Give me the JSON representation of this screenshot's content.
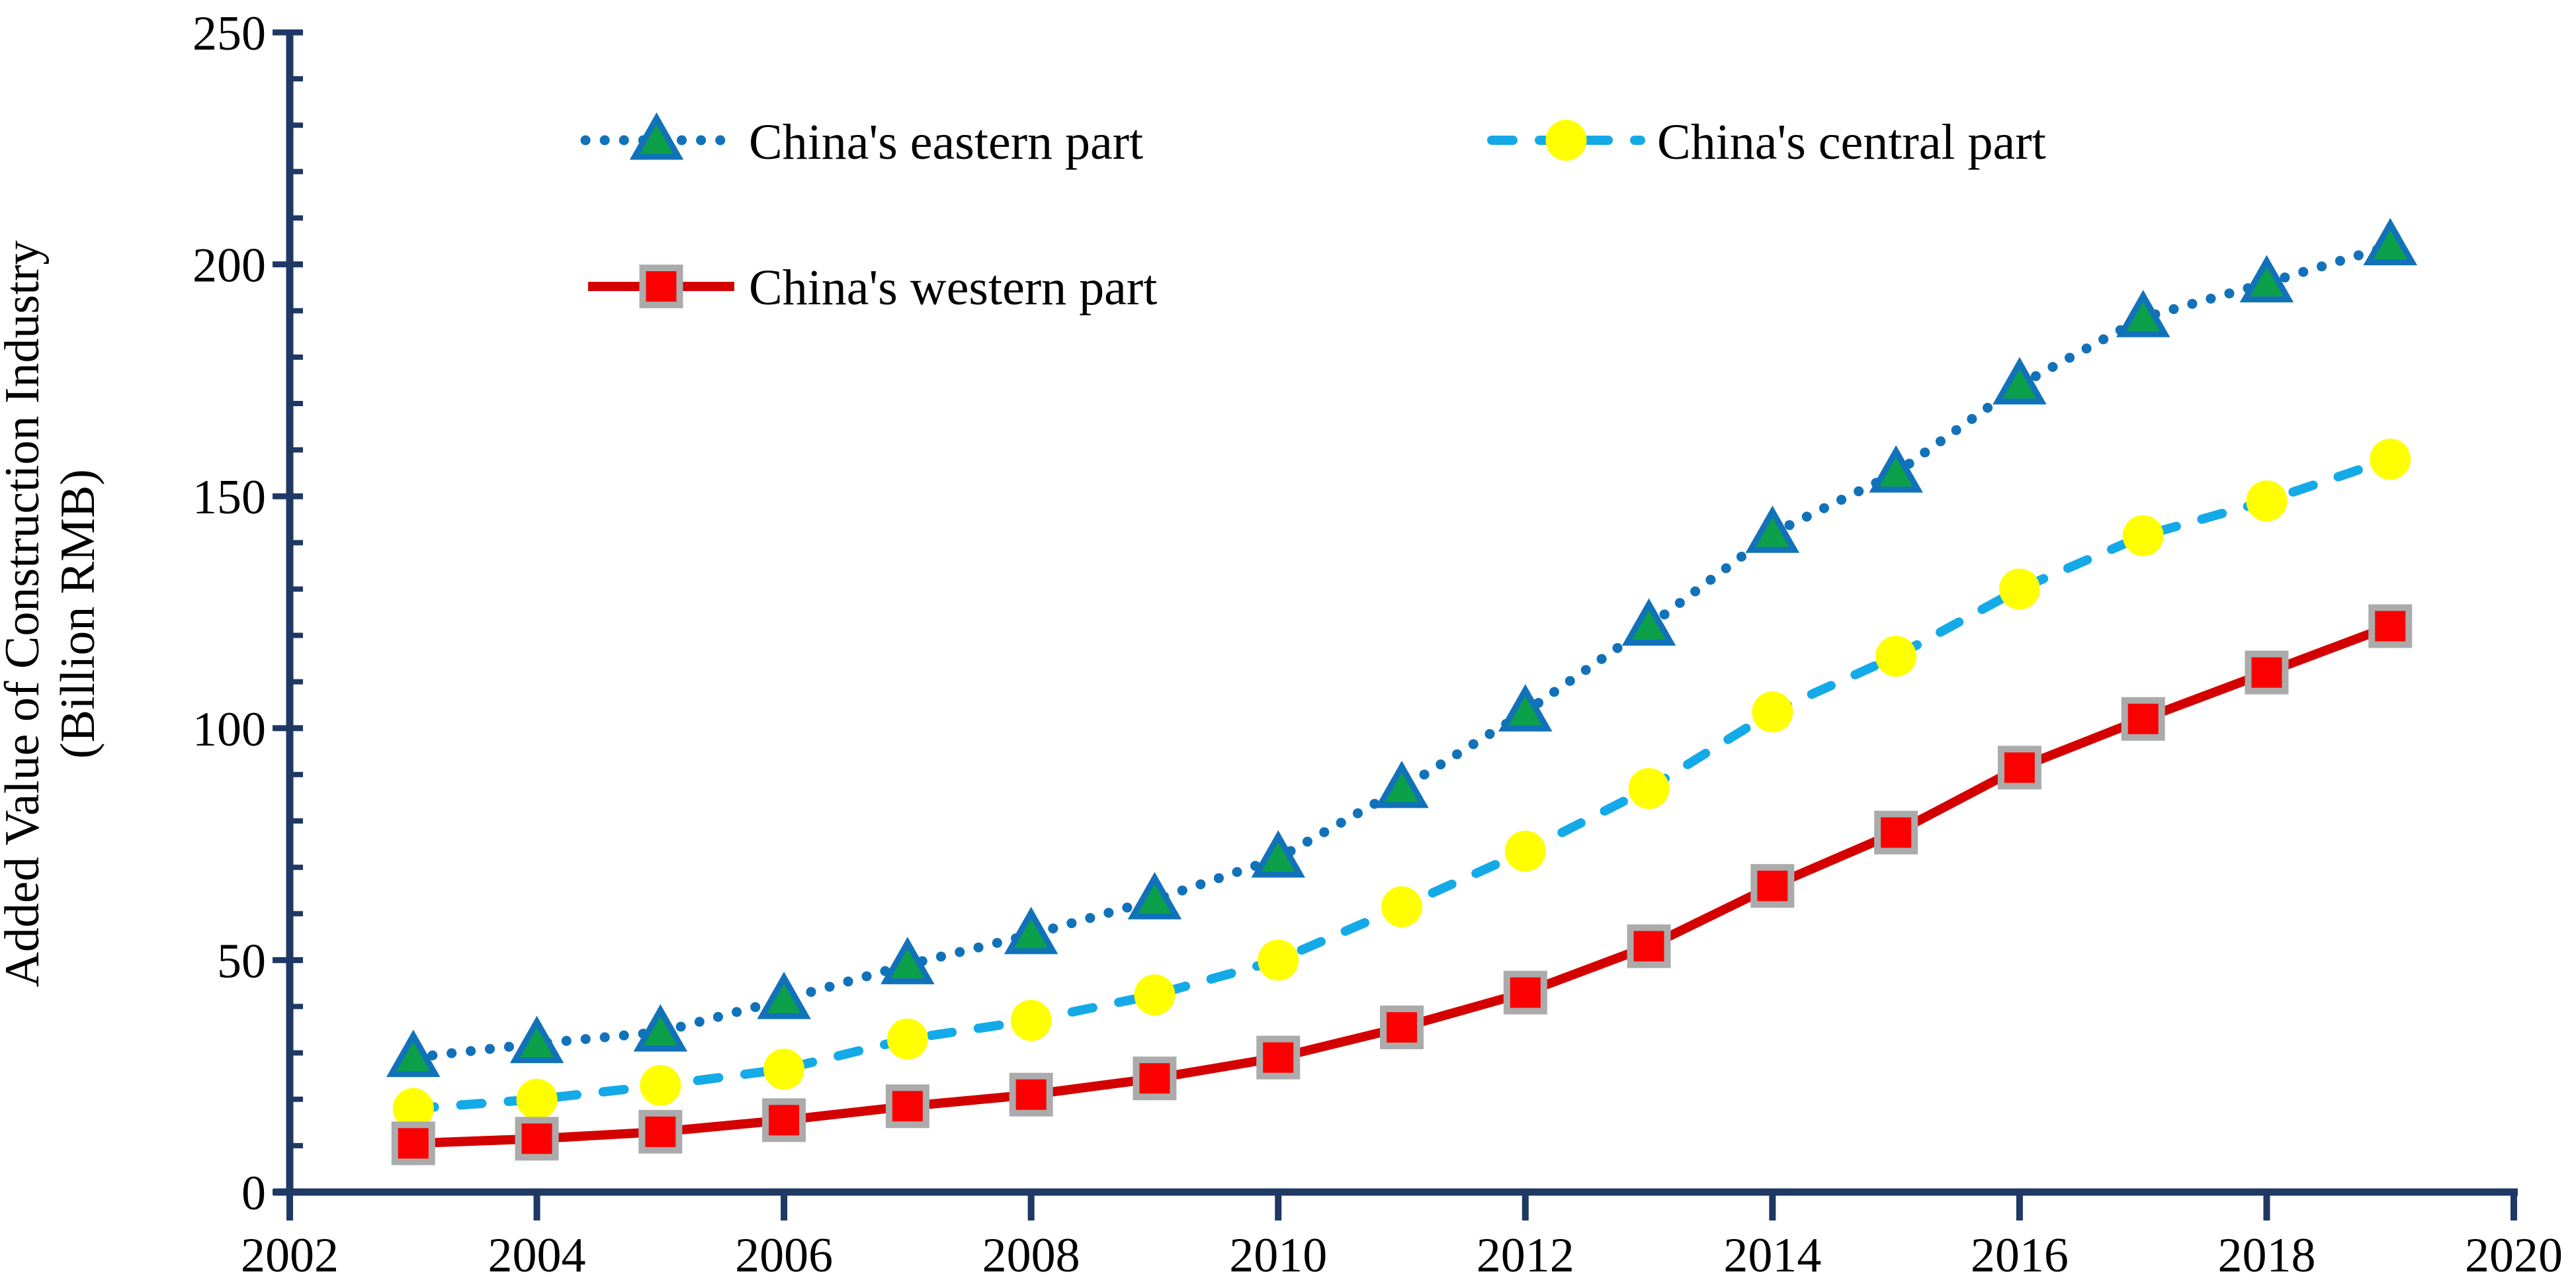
{
  "figure": {
    "background": "#FFFFFF",
    "axis_color": "#1F3864",
    "text_color": "#000000"
  },
  "y_axis": {
    "title_line1": "Added Value of Construction Industry",
    "title_line2": "(Billion RMB)",
    "tick_labels": [
      "0",
      "50",
      "100",
      "150",
      "200",
      "250"
    ],
    "major_ticks": [
      0,
      50,
      100,
      150,
      200,
      250
    ],
    "minor_tick_step": 10,
    "min": 0,
    "max": 250
  },
  "x_axis": {
    "tick_labels": [
      "2002",
      "2004",
      "2006",
      "2008",
      "2010",
      "2012",
      "2014",
      "2016",
      "2018",
      "2020"
    ],
    "ticks": [
      2002,
      2004,
      2006,
      2008,
      2010,
      2012,
      2014,
      2016,
      2018,
      2020
    ],
    "min": 2002,
    "max": 2020
  },
  "chart_data": {
    "type": "line",
    "title": "",
    "xlabel": "",
    "ylabel": "Added Value of Construction Industry (Billion RMB)",
    "xlim": [
      2002,
      2020
    ],
    "ylim": [
      0,
      250
    ],
    "grid": false,
    "legend_position": "top-inside",
    "x": [
      2003,
      2004,
      2005,
      2006,
      2007,
      2008,
      2009,
      2010,
      2011,
      2012,
      2013,
      2014,
      2015,
      2016,
      2017,
      2018,
      2019
    ],
    "series": [
      {
        "name": "China's eastern part",
        "key": "eastern",
        "line_style": "dotted",
        "marker": "triangle",
        "line_color": "#1172BA",
        "marker_fill": "#0CA04A",
        "marker_border": "#1172BA",
        "values": [
          29,
          32,
          34.5,
          41.5,
          49,
          55.5,
          63,
          72,
          87,
          103.5,
          122,
          142,
          155,
          174,
          188.5,
          196,
          204
        ]
      },
      {
        "name": "China's central part",
        "key": "central",
        "line_style": "dashed",
        "marker": "circle",
        "line_color": "#14AAE8",
        "marker_fill": "#FFFF00",
        "marker_border": "#FFFF00",
        "values": [
          18,
          20,
          23,
          26.5,
          33,
          37,
          42.5,
          50,
          61.5,
          73.5,
          87,
          103.5,
          115.5,
          130,
          141.5,
          149,
          158
        ]
      },
      {
        "name": "China's western part",
        "key": "western",
        "line_style": "solid",
        "marker": "square",
        "line_color": "#D40000",
        "marker_fill": "#FA0000",
        "marker_border": "#ABABAB",
        "values": [
          10.5,
          11.5,
          13,
          15.5,
          18.5,
          21,
          24.5,
          29,
          35.5,
          43,
          53,
          66,
          77.5,
          91.5,
          102,
          112,
          122
        ]
      }
    ]
  }
}
